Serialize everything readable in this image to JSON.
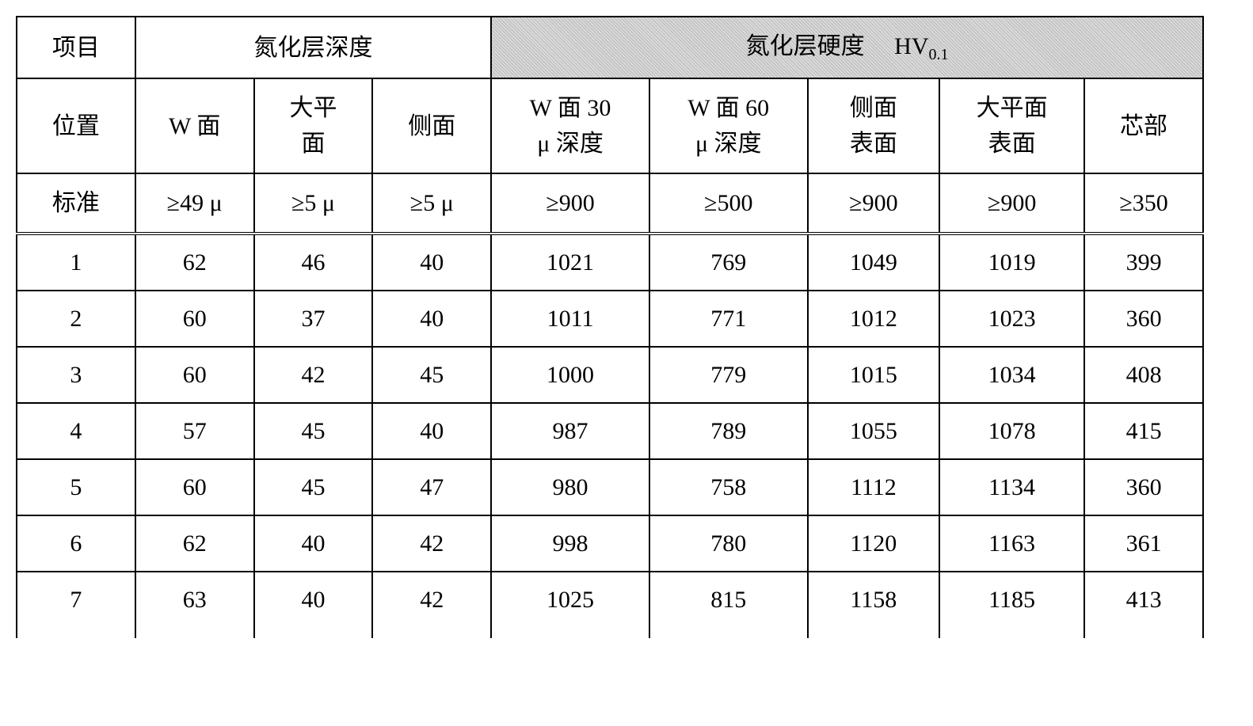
{
  "table": {
    "type": "table",
    "border_color": "#000000",
    "background_color": "#ffffff",
    "shaded_bg": "#d9d9d9",
    "font_family": "SimSun",
    "cell_fontsize": 30,
    "sub_fontsize": 20,
    "header": {
      "row1": {
        "item": "项目",
        "depth_group": "氮化层深度",
        "hardness_group_part1": "氮化层硬度",
        "hardness_group_part2": "HV",
        "hardness_group_sub": "0.1"
      },
      "row2": {
        "position": "位置",
        "w_face": "W 面",
        "big_plane": "大平面",
        "side_face": "侧面",
        "w_face_30": "W 面 30 μ 深度",
        "w_face_60": "W 面 60 μ 深度",
        "side_surface": "侧面表面",
        "big_plane_surface": "大平面表面",
        "core": "芯部"
      },
      "row3": {
        "standard": "标准",
        "c1": "≥49 μ",
        "c2": "≥5 μ",
        "c3": "≥5 μ",
        "c4": "≥900",
        "c5": "≥500",
        "c6": "≥900",
        "c7": "≥900",
        "c8": "≥350"
      }
    },
    "rows": [
      {
        "n": "1",
        "c1": "62",
        "c2": "46",
        "c3": "40",
        "c4": "1021",
        "c5": "769",
        "c6": "1049",
        "c7": "1019",
        "c8": "399"
      },
      {
        "n": "2",
        "c1": "60",
        "c2": "37",
        "c3": "40",
        "c4": "1011",
        "c5": "771",
        "c6": "1012",
        "c7": "1023",
        "c8": "360"
      },
      {
        "n": "3",
        "c1": "60",
        "c2": "42",
        "c3": "45",
        "c4": "1000",
        "c5": "779",
        "c6": "1015",
        "c7": "1034",
        "c8": "408"
      },
      {
        "n": "4",
        "c1": "57",
        "c2": "45",
        "c3": "40",
        "c4": "987",
        "c5": "789",
        "c6": "1055",
        "c7": "1078",
        "c8": "415"
      },
      {
        "n": "5",
        "c1": "60",
        "c2": "45",
        "c3": "47",
        "c4": "980",
        "c5": "758",
        "c6": "1112",
        "c7": "1134",
        "c8": "360"
      },
      {
        "n": "6",
        "c1": "62",
        "c2": "40",
        "c3": "42",
        "c4": "998",
        "c5": "780",
        "c6": "1120",
        "c7": "1163",
        "c8": "361"
      },
      {
        "n": "7",
        "c1": "63",
        "c2": "40",
        "c3": "42",
        "c4": "1025",
        "c5": "815",
        "c6": "1158",
        "c7": "1185",
        "c8": "413"
      }
    ],
    "columns": [
      "项目/位置",
      "W 面",
      "大平面",
      "侧面",
      "W 面 30 μ 深度",
      "W 面 60 μ 深度",
      "侧面表面",
      "大平面表面",
      "芯部"
    ],
    "col_widths_pct": [
      9,
      9,
      9,
      9,
      12,
      12,
      10,
      11,
      9
    ]
  }
}
